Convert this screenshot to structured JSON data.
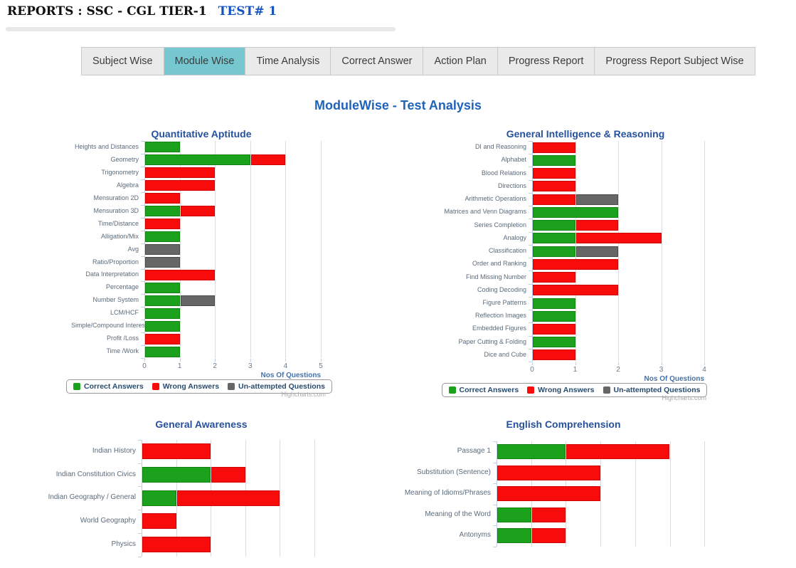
{
  "header": {
    "title": "REPORTS : SSC - CGL TIER-1",
    "test_label": "TEST# 1"
  },
  "tabs": [
    {
      "label": "Subject Wise",
      "active": false
    },
    {
      "label": "Module Wise",
      "active": true
    },
    {
      "label": "Time Analysis",
      "active": false
    },
    {
      "label": "Correct Answer",
      "active": false
    },
    {
      "label": "Action Plan",
      "active": false
    },
    {
      "label": "Progress Report",
      "active": false
    },
    {
      "label": "Progress Report Subject Wise",
      "active": false
    }
  ],
  "page_title": "ModuleWise - Test Analysis",
  "credits_label": "Highcharts.com",
  "colors": {
    "correct": "#1ba11b",
    "correct_border": "#128312",
    "wrong": "#f80b0b",
    "wrong_border": "#cf0606",
    "unattempted": "#666666",
    "unattempted_border": "#4a4a4a",
    "active_tab": "#76c7d0",
    "chart_title": "#26519d",
    "page_title": "#2063bb"
  },
  "chart_data": [
    {
      "type": "bar",
      "title": "Quantitative Aptitude",
      "xlabel": "Nos Of Questions",
      "xticks": [
        0,
        1,
        2,
        3,
        4,
        5
      ],
      "xmax": 5,
      "grid": true,
      "legend_position": "bottom-center",
      "show_legend": true,
      "categories": [
        "Heights and Distances",
        "Geometry",
        "Trigonometry",
        "Algebra",
        "Mensuration 2D",
        "Mensuration 3D",
        "Time/Distance",
        "Alligation/Mix",
        "Avg",
        "Ratio/Proportion",
        "Data Interpretation",
        "Percentage",
        "Number System",
        "LCM/HCF",
        "Simple/Compound Interest",
        "Profit /Loss",
        "Time /Work"
      ],
      "series": [
        {
          "name": "Correct Answers",
          "color_key": "correct",
          "values": [
            1,
            3,
            0,
            0,
            0,
            1,
            0,
            1,
            0,
            0,
            0,
            1,
            1,
            1,
            1,
            0,
            1
          ]
        },
        {
          "name": "Wrong Answers",
          "color_key": "wrong",
          "values": [
            0,
            1,
            2,
            2,
            1,
            1,
            1,
            0,
            0,
            0,
            2,
            0,
            0,
            0,
            0,
            1,
            0
          ]
        },
        {
          "name": "Un-attempted Questions",
          "color_key": "unattempted",
          "values": [
            0,
            0,
            0,
            0,
            0,
            0,
            0,
            0,
            1,
            1,
            0,
            0,
            1,
            0,
            0,
            0,
            0
          ]
        }
      ]
    },
    {
      "type": "bar",
      "title": "General Intelligence & Reasoning",
      "xlabel": "Nos Of Questions",
      "xticks": [
        0,
        1,
        2,
        3,
        4
      ],
      "xmax": 4,
      "grid": true,
      "legend_position": "bottom-center",
      "show_legend": true,
      "categories": [
        "DI and Reasoning",
        "Alphabet",
        "Blood Relations",
        "Directions",
        "Arithmetic Operations",
        "Matrices and Venn Diagrams",
        "Series Completion",
        "Analogy",
        "Classification",
        "Order and Ranking",
        "Find Missing Number",
        "Coding Decoding",
        "Figure Patterns",
        "Reflection Images",
        "Embedded Figures",
        "Paper Cutting & Folding",
        "Dice and Cube"
      ],
      "series": [
        {
          "name": "Correct Answers",
          "color_key": "correct",
          "values": [
            0,
            1,
            0,
            0,
            0,
            2,
            1,
            1,
            1,
            0,
            0,
            0,
            1,
            1,
            0,
            1,
            0
          ]
        },
        {
          "name": "Wrong Answers",
          "color_key": "wrong",
          "values": [
            1,
            0,
            1,
            1,
            1,
            0,
            1,
            2,
            0,
            2,
            1,
            2,
            0,
            0,
            1,
            0,
            1
          ]
        },
        {
          "name": "Un-attempted Questions",
          "color_key": "unattempted",
          "values": [
            0,
            0,
            0,
            0,
            1,
            0,
            0,
            0,
            1,
            0,
            0,
            0,
            0,
            0,
            0,
            0,
            0
          ]
        }
      ]
    },
    {
      "type": "bar",
      "title": "General Awareness",
      "xlabel": "",
      "xticks": [],
      "xmax": 5,
      "grid": true,
      "legend_position": "bottom-center",
      "show_legend": false,
      "categories": [
        "Indian History",
        "Indian Constitution Civics",
        "Indian Geography / General",
        "World Geography",
        "Physics"
      ],
      "series": [
        {
          "name": "Correct Answers",
          "color_key": "correct",
          "values": [
            0,
            2,
            1,
            0,
            0
          ]
        },
        {
          "name": "Wrong Answers",
          "color_key": "wrong",
          "values": [
            2,
            1,
            3,
            1,
            2
          ]
        },
        {
          "name": "Un-attempted Questions",
          "color_key": "unattempted",
          "values": [
            0,
            0,
            0,
            0,
            0
          ]
        }
      ]
    },
    {
      "type": "bar",
      "title": "English Comprehension",
      "xlabel": "",
      "xticks": [],
      "xmax": 6,
      "grid": true,
      "legend_position": "bottom-center",
      "show_legend": false,
      "categories": [
        "Passage 1",
        "Substitution (Sentence)",
        "Meaning of Idioms/Phrases",
        "Meaning of the Word",
        "Antonyms"
      ],
      "series": [
        {
          "name": "Correct Answers",
          "color_key": "correct",
          "values": [
            2,
            0,
            0,
            1,
            1
          ]
        },
        {
          "name": "Wrong Answers",
          "color_key": "wrong",
          "values": [
            3,
            3,
            3,
            1,
            1
          ]
        },
        {
          "name": "Un-attempted Questions",
          "color_key": "unattempted",
          "values": [
            0,
            0,
            0,
            0,
            0
          ]
        }
      ]
    }
  ]
}
